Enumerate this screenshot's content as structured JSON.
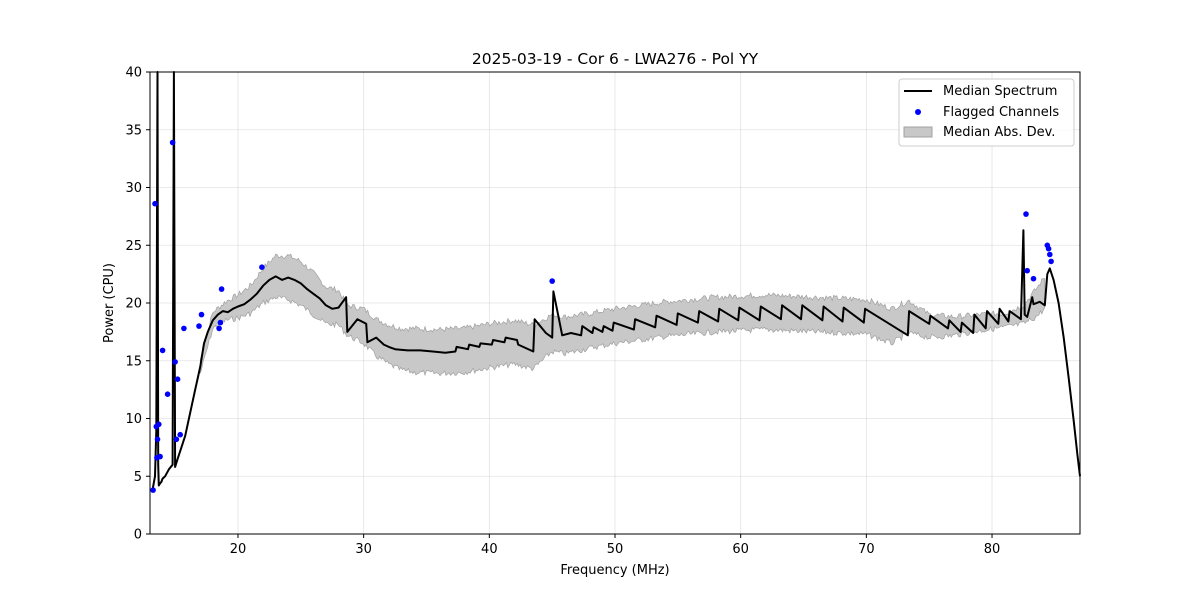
{
  "chart_data": {
    "type": "line",
    "title": "2025-03-19 - Cor 6 - LWA276 - Pol YY",
    "xlabel": "Frequency (MHz)",
    "ylabel": "Power (CPU)",
    "xlim": [
      13.0,
      87.0
    ],
    "ylim": [
      0,
      40
    ],
    "xticks": [
      20,
      30,
      40,
      50,
      60,
      70,
      80
    ],
    "yticks": [
      0,
      5,
      10,
      15,
      20,
      25,
      30,
      35,
      40
    ],
    "grid": true,
    "legend_position": "top-right",
    "legend": [
      "Median Spectrum",
      "Flagged Channels",
      "Median Abs. Dev."
    ],
    "colors": {
      "median": "#000000",
      "flagged": "#0000ff",
      "mad_fill": "#c8c8c8",
      "mad_edge": "#a0a0a0"
    },
    "median_spectrum": {
      "x": [
        13.2,
        13.4,
        13.5,
        13.6,
        13.65,
        13.7,
        13.8,
        13.9,
        14.0,
        14.2,
        14.5,
        14.8,
        14.9,
        15.0,
        15.2,
        15.5,
        15.8,
        16.2,
        16.6,
        17.0,
        17.3,
        17.6,
        18.0,
        18.4,
        18.8,
        19.2,
        19.6,
        20.0,
        20.5,
        21.0,
        21.5,
        22.0,
        22.5,
        23.0,
        23.5,
        24.0,
        24.5,
        25.0,
        25.5,
        26.0,
        26.5,
        27.0,
        27.5,
        28.0,
        28.6,
        28.7,
        29.5,
        30.2,
        30.3,
        31.0,
        31.6,
        32.0,
        32.5,
        33.5,
        34.5,
        35.5,
        36.5,
        37.3,
        37.4,
        38.3,
        38.4,
        39.2,
        39.3,
        40.2,
        40.3,
        41.2,
        41.3,
        42.2,
        42.3,
        43.5,
        43.6,
        44.5,
        45.0,
        45.1,
        45.8,
        46.5,
        47.3,
        47.4,
        48.2,
        48.3,
        49.0,
        49.1,
        49.8,
        49.9,
        51.5,
        51.6,
        53.2,
        53.3,
        54.9,
        55.0,
        56.6,
        56.7,
        58.2,
        58.3,
        59.8,
        59.9,
        61.5,
        61.6,
        63.2,
        63.3,
        64.8,
        64.9,
        66.5,
        66.6,
        68.1,
        68.2,
        69.8,
        69.9,
        73.3,
        73.4,
        75.0,
        75.1,
        76.5,
        76.6,
        77.5,
        77.6,
        78.5,
        78.6,
        79.5,
        79.6,
        80.5,
        80.6,
        81.3,
        81.4,
        82.3,
        82.5,
        82.6,
        82.8,
        83.2,
        83.3,
        83.8,
        84.2,
        84.4,
        84.6,
        84.9,
        85.3,
        85.7,
        86.1,
        86.5,
        86.8,
        87.0
      ],
      "y": [
        3.8,
        5.0,
        9.0,
        40.0,
        6.0,
        4.2,
        4.4,
        4.5,
        4.8,
        5.0,
        5.6,
        6.0,
        40.0,
        5.8,
        6.5,
        7.5,
        8.5,
        10.5,
        12.5,
        14.5,
        16.5,
        17.5,
        18.5,
        19.0,
        19.3,
        19.2,
        19.5,
        19.7,
        19.9,
        20.3,
        20.8,
        21.5,
        22.0,
        22.3,
        22.0,
        22.2,
        22.0,
        21.7,
        21.2,
        20.8,
        20.4,
        19.8,
        19.5,
        19.6,
        20.5,
        17.5,
        18.6,
        18.2,
        16.6,
        17.0,
        16.4,
        16.2,
        16.0,
        15.9,
        15.9,
        15.8,
        15.7,
        15.8,
        16.2,
        16.0,
        16.4,
        16.2,
        16.5,
        16.4,
        16.8,
        16.6,
        17.0,
        16.8,
        16.4,
        15.8,
        18.6,
        17.4,
        17.0,
        21.0,
        17.2,
        17.4,
        17.2,
        18.0,
        17.4,
        17.9,
        17.5,
        18.0,
        17.6,
        18.3,
        17.7,
        18.6,
        17.9,
        18.9,
        18.1,
        19.1,
        18.3,
        19.3,
        18.4,
        19.5,
        18.5,
        19.6,
        18.5,
        19.7,
        18.6,
        19.8,
        18.6,
        19.8,
        18.5,
        19.7,
        18.4,
        19.6,
        18.3,
        19.5,
        17.2,
        19.3,
        18.2,
        18.9,
        17.8,
        18.5,
        17.5,
        18.3,
        17.4,
        19.0,
        17.8,
        19.3,
        18.2,
        19.5,
        18.4,
        19.3,
        18.6,
        26.3,
        19.0,
        18.8,
        20.5,
        19.9,
        20.1,
        19.8,
        22.5,
        23.0,
        22.0,
        20.0,
        17.0,
        13.5,
        9.8,
        6.8,
        5.0
      ]
    },
    "mad_band": {
      "x": [
        17.0,
        18.0,
        19.0,
        20.0,
        21.0,
        22.0,
        23.0,
        24.0,
        25.0,
        26.0,
        27.0,
        28.0,
        28.7,
        30.0,
        31.0,
        32.0,
        33.0,
        34.0,
        36.0,
        38.0,
        40.0,
        42.0,
        43.5,
        45.0,
        46.0,
        48.0,
        50.0,
        52.0,
        54.0,
        56.0,
        58.0,
        60.0,
        62.0,
        64.0,
        66.0,
        68.0,
        70.0,
        72.0,
        73.4,
        75.0,
        77.0,
        79.0,
        81.0,
        82.5,
        83.5,
        84.3
      ],
      "center": [
        14.5,
        18.5,
        19.3,
        19.7,
        20.3,
        21.5,
        22.3,
        22.2,
        21.7,
        20.8,
        19.8,
        19.6,
        18.5,
        18.0,
        17.0,
        16.4,
        16.0,
        15.9,
        15.8,
        15.9,
        16.3,
        16.6,
        16.2,
        17.4,
        17.2,
        17.6,
        18.0,
        18.3,
        18.6,
        18.8,
        19.0,
        19.1,
        19.2,
        19.1,
        19.0,
        18.9,
        18.8,
        18.0,
        18.8,
        18.0,
        18.0,
        18.3,
        18.5,
        19.0,
        20.0,
        21.0
      ],
      "dev": [
        0.6,
        0.7,
        0.8,
        1.0,
        1.2,
        1.5,
        1.8,
        1.9,
        1.9,
        1.8,
        1.6,
        1.5,
        1.3,
        1.5,
        1.6,
        1.7,
        1.8,
        1.9,
        1.9,
        1.9,
        1.9,
        1.9,
        1.9,
        1.6,
        1.6,
        1.5,
        1.5,
        1.5,
        1.5,
        1.5,
        1.5,
        1.5,
        1.5,
        1.5,
        1.5,
        1.5,
        1.5,
        1.5,
        1.4,
        1.0,
        0.8,
        0.7,
        0.6,
        0.8,
        1.2,
        1.4
      ]
    },
    "flagged_channels": {
      "x": [
        13.25,
        13.4,
        13.5,
        13.55,
        13.6,
        13.7,
        13.8,
        14.0,
        14.4,
        14.8,
        15.0,
        15.1,
        15.2,
        15.4,
        15.7,
        16.9,
        17.1,
        18.5,
        18.6,
        18.7,
        21.9,
        45.0,
        82.7,
        82.8,
        83.3,
        84.4,
        84.5,
        84.6,
        84.7
      ],
      "y": [
        3.8,
        28.6,
        9.3,
        6.6,
        8.2,
        9.5,
        6.7,
        15.9,
        12.1,
        33.9,
        14.9,
        8.2,
        13.4,
        8.6,
        17.8,
        18.0,
        19.0,
        17.8,
        18.3,
        21.2,
        23.1,
        21.9,
        27.7,
        22.8,
        22.1,
        25.0,
        24.7,
        24.2,
        23.6
      ]
    }
  }
}
